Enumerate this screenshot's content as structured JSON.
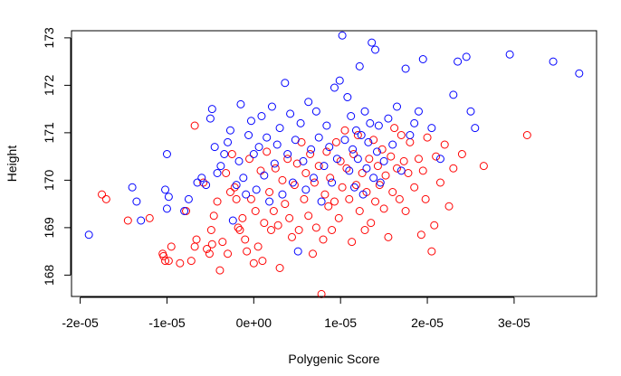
{
  "colors": {
    "series_1": "#ff0000",
    "series_2": "#0000ff"
  },
  "chart_data": {
    "type": "scatter",
    "title": "",
    "xlabel": "Polygenic Score",
    "ylabel": "Height",
    "xlim": [
      -2.1e-05,
      3.95e-05
    ],
    "ylim": [
      167.55,
      173.15
    ],
    "grid": false,
    "legend": "none",
    "x_ticks": [
      -2e-05,
      -1e-05,
      0,
      1e-05,
      2e-05,
      3e-05
    ],
    "x_tick_labels": [
      "-2e-05",
      "-1e-05",
      "0e+00",
      "1e-05",
      "2e-05",
      "3e-05"
    ],
    "y_ticks": [
      168,
      169,
      170,
      171,
      172,
      173
    ],
    "y_tick_labels": [
      "168",
      "169",
      "170",
      "171",
      "172",
      "173"
    ],
    "marker": "open-circle",
    "series": [
      {
        "color": "#ff0000",
        "points": [
          [
            -1.75e-05,
            169.7
          ],
          [
            -1.7e-05,
            169.6
          ],
          [
            -1.45e-05,
            169.15
          ],
          [
            -1.2e-05,
            169.2
          ],
          [
            -1.05e-05,
            168.45
          ],
          [
            -1.02e-05,
            168.3
          ],
          [
            -1.04e-05,
            168.4
          ],
          [
            -9.5e-06,
            168.6
          ],
          [
            -9.8e-06,
            168.3
          ],
          [
            -8.5e-06,
            168.25
          ],
          [
            -7.8e-06,
            169.35
          ],
          [
            -7.2e-06,
            168.3
          ],
          [
            -6.8e-06,
            168.6
          ],
          [
            -6.6e-06,
            168.75
          ],
          [
            -6.8e-06,
            171.15
          ],
          [
            -5.8e-06,
            169.95
          ],
          [
            -5.4e-06,
            168.55
          ],
          [
            -5.1e-06,
            168.45
          ],
          [
            -4.8e-06,
            168.65
          ],
          [
            -4.6e-06,
            169.25
          ],
          [
            -4.9e-06,
            168.95
          ],
          [
            -4.2e-06,
            169.55
          ],
          [
            -3.9e-06,
            168.1
          ],
          [
            -3.6e-06,
            168.7
          ],
          [
            -3.2e-06,
            170.15
          ],
          [
            -3e-06,
            168.45
          ],
          [
            -2.7e-06,
            169.75
          ],
          [
            -2.5e-06,
            170.55
          ],
          [
            -2.2e-06,
            169.85
          ],
          [
            -2e-06,
            169.6
          ],
          [
            -1.8e-06,
            169.0
          ],
          [
            -1.6e-06,
            168.95
          ],
          [
            -1.3e-06,
            169.2
          ],
          [
            -1e-06,
            168.75
          ],
          [
            -8e-07,
            168.5
          ],
          [
            -5e-07,
            170.45
          ],
          [
            -3e-07,
            169.6
          ],
          [
            0,
            168.25
          ],
          [
            2e-07,
            169.35
          ],
          [
            5e-07,
            168.6
          ],
          [
            8e-07,
            170.2
          ],
          [
            1e-06,
            168.3
          ],
          [
            1.2e-06,
            169.1
          ],
          [
            1.5e-06,
            170.6
          ],
          [
            1.8e-06,
            169.75
          ],
          [
            2e-06,
            168.95
          ],
          [
            2.3e-06,
            169.35
          ],
          [
            2.5e-06,
            170.25
          ],
          [
            2.8e-06,
            169.05
          ],
          [
            3e-06,
            168.15
          ],
          [
            3.3e-06,
            170.0
          ],
          [
            3.6e-06,
            169.5
          ],
          [
            3.9e-06,
            170.45
          ],
          [
            4.1e-06,
            169.2
          ],
          [
            4.4e-06,
            168.8
          ],
          [
            4.7e-06,
            169.9
          ],
          [
            5e-06,
            170.35
          ],
          [
            5.2e-06,
            168.95
          ],
          [
            5.5e-06,
            170.8
          ],
          [
            5.8e-06,
            169.6
          ],
          [
            6e-06,
            170.15
          ],
          [
            6.3e-06,
            169.25
          ],
          [
            6.5e-06,
            170.55
          ],
          [
            6.8e-06,
            168.45
          ],
          [
            7e-06,
            169.95
          ],
          [
            7.2e-06,
            169.0
          ],
          [
            7.5e-06,
            170.3
          ],
          [
            7.8e-06,
            167.6
          ],
          [
            8e-06,
            168.75
          ],
          [
            8.2e-06,
            169.7
          ],
          [
            8.4e-06,
            170.6
          ],
          [
            8.6e-06,
            169.45
          ],
          [
            8.8e-06,
            170.05
          ],
          [
            9e-06,
            168.95
          ],
          [
            9.3e-06,
            169.55
          ],
          [
            9.5e-06,
            170.8
          ],
          [
            9.8e-06,
            169.2
          ],
          [
            1e-05,
            170.4
          ],
          [
            1.02e-05,
            169.85
          ],
          [
            1.05e-05,
            171.05
          ],
          [
            1.07e-05,
            170.25
          ],
          [
            1.1e-05,
            169.6
          ],
          [
            1.13e-05,
            168.7
          ],
          [
            1.15e-05,
            170.55
          ],
          [
            1.18e-05,
            169.9
          ],
          [
            1.2e-05,
            170.95
          ],
          [
            1.22e-05,
            169.35
          ],
          [
            1.25e-05,
            170.15
          ],
          [
            1.28e-05,
            168.95
          ],
          [
            1.3e-05,
            169.75
          ],
          [
            1.33e-05,
            170.45
          ],
          [
            1.35e-05,
            169.1
          ],
          [
            1.38e-05,
            170.85
          ],
          [
            1.4e-05,
            169.55
          ],
          [
            1.43e-05,
            170.3
          ],
          [
            1.45e-05,
            169.9
          ],
          [
            1.48e-05,
            170.65
          ],
          [
            1.5e-05,
            169.4
          ],
          [
            1.52e-05,
            170.1
          ],
          [
            1.55e-05,
            168.8
          ],
          [
            1.58e-05,
            170.5
          ],
          [
            1.6e-05,
            169.75
          ],
          [
            1.62e-05,
            171.1
          ],
          [
            1.65e-05,
            170.25
          ],
          [
            1.68e-05,
            169.6
          ],
          [
            1.7e-05,
            170.95
          ],
          [
            1.73e-05,
            170.4
          ],
          [
            1.75e-05,
            169.35
          ],
          [
            1.78e-05,
            170.15
          ],
          [
            1.8e-05,
            170.8
          ],
          [
            1.85e-05,
            169.85
          ],
          [
            1.9e-05,
            170.45
          ],
          [
            1.93e-05,
            168.85
          ],
          [
            1.95e-05,
            170.2
          ],
          [
            1.98e-05,
            169.6
          ],
          [
            2e-05,
            170.9
          ],
          [
            2.05e-05,
            168.5
          ],
          [
            2.08e-05,
            169.05
          ],
          [
            2.1e-05,
            170.5
          ],
          [
            2.15e-05,
            169.95
          ],
          [
            2.2e-05,
            170.75
          ],
          [
            2.25e-05,
            169.45
          ],
          [
            2.3e-05,
            170.25
          ],
          [
            2.4e-05,
            170.55
          ],
          [
            2.65e-05,
            170.3
          ],
          [
            3.15e-05,
            170.95
          ]
        ]
      },
      {
        "color": "#0000ff",
        "points": [
          [
            -1.9e-05,
            168.85
          ],
          [
            -1.4e-05,
            169.85
          ],
          [
            -1.35e-05,
            169.55
          ],
          [
            -1.3e-05,
            169.15
          ],
          [
            -1.02e-05,
            169.8
          ],
          [
            -1e-05,
            169.4
          ],
          [
            -1e-05,
            170.55
          ],
          [
            -9.8e-06,
            169.65
          ],
          [
            -8e-06,
            169.35
          ],
          [
            -7.5e-06,
            169.6
          ],
          [
            -6.5e-06,
            169.95
          ],
          [
            -6e-06,
            170.05
          ],
          [
            -5.5e-06,
            169.9
          ],
          [
            -5e-06,
            171.3
          ],
          [
            -4.8e-06,
            171.5
          ],
          [
            -4.5e-06,
            170.7
          ],
          [
            -4.2e-06,
            170.15
          ],
          [
            -3.8e-06,
            170.3
          ],
          [
            -3.4e-06,
            170.55
          ],
          [
            -3e-06,
            170.8
          ],
          [
            -2.7e-06,
            171.05
          ],
          [
            -2.4e-06,
            169.15
          ],
          [
            -2e-06,
            169.9
          ],
          [
            -1.7e-06,
            170.4
          ],
          [
            -1.5e-06,
            171.6
          ],
          [
            -1.2e-06,
            170.05
          ],
          [
            -9e-07,
            169.7
          ],
          [
            -6e-07,
            170.95
          ],
          [
            -3e-07,
            171.25
          ],
          [
            0,
            170.55
          ],
          [
            3e-07,
            169.8
          ],
          [
            6e-07,
            170.7
          ],
          [
            9e-07,
            171.35
          ],
          [
            1.2e-06,
            170.1
          ],
          [
            1.5e-06,
            170.9
          ],
          [
            1.8e-06,
            169.55
          ],
          [
            2.1e-06,
            171.55
          ],
          [
            2.4e-06,
            170.35
          ],
          [
            2.7e-06,
            170.75
          ],
          [
            3e-06,
            171.1
          ],
          [
            3.3e-06,
            169.7
          ],
          [
            3.6e-06,
            172.05
          ],
          [
            3.9e-06,
            170.55
          ],
          [
            4.2e-06,
            171.4
          ],
          [
            4.5e-06,
            169.95
          ],
          [
            4.8e-06,
            170.85
          ],
          [
            5.1e-06,
            168.5
          ],
          [
            5.4e-06,
            171.2
          ],
          [
            5.7e-06,
            170.4
          ],
          [
            6e-06,
            169.8
          ],
          [
            6.3e-06,
            171.65
          ],
          [
            6.6e-06,
            170.65
          ],
          [
            6.9e-06,
            170.05
          ],
          [
            7.2e-06,
            171.45
          ],
          [
            7.5e-06,
            170.9
          ],
          [
            7.8e-06,
            169.55
          ],
          [
            8.1e-06,
            170.3
          ],
          [
            8.4e-06,
            171.15
          ],
          [
            8.7e-06,
            170.7
          ],
          [
            9e-06,
            169.95
          ],
          [
            9.3e-06,
            171.95
          ],
          [
            9.6e-06,
            170.45
          ],
          [
            9.9e-06,
            172.1
          ],
          [
            1.02e-05,
            173.05
          ],
          [
            1.05e-05,
            170.85
          ],
          [
            1.08e-05,
            171.75
          ],
          [
            1.1e-05,
            170.2
          ],
          [
            1.12e-05,
            171.35
          ],
          [
            1.14e-05,
            170.65
          ],
          [
            1.16e-05,
            169.85
          ],
          [
            1.18e-05,
            171.05
          ],
          [
            1.2e-05,
            170.45
          ],
          [
            1.22e-05,
            172.4
          ],
          [
            1.24e-05,
            170.95
          ],
          [
            1.26e-05,
            169.7
          ],
          [
            1.28e-05,
            171.45
          ],
          [
            1.3e-05,
            170.25
          ],
          [
            1.32e-05,
            170.8
          ],
          [
            1.34e-05,
            171.2
          ],
          [
            1.36e-05,
            172.9
          ],
          [
            1.38e-05,
            170.05
          ],
          [
            1.4e-05,
            172.75
          ],
          [
            1.42e-05,
            170.6
          ],
          [
            1.44e-05,
            171.15
          ],
          [
            1.46e-05,
            169.95
          ],
          [
            1.5e-05,
            170.4
          ],
          [
            1.55e-05,
            171.3
          ],
          [
            1.6e-05,
            170.75
          ],
          [
            1.65e-05,
            171.55
          ],
          [
            1.7e-05,
            170.2
          ],
          [
            1.75e-05,
            172.35
          ],
          [
            1.8e-05,
            170.95
          ],
          [
            1.85e-05,
            171.2
          ],
          [
            1.9e-05,
            171.45
          ],
          [
            1.95e-05,
            172.55
          ],
          [
            2.05e-05,
            171.1
          ],
          [
            2.15e-05,
            170.45
          ],
          [
            2.3e-05,
            171.8
          ],
          [
            2.35e-05,
            172.5
          ],
          [
            2.45e-05,
            172.6
          ],
          [
            2.5e-05,
            171.45
          ],
          [
            2.55e-05,
            171.1
          ],
          [
            2.95e-05,
            172.65
          ],
          [
            3.45e-05,
            172.5
          ],
          [
            3.75e-05,
            172.25
          ]
        ]
      }
    ]
  }
}
